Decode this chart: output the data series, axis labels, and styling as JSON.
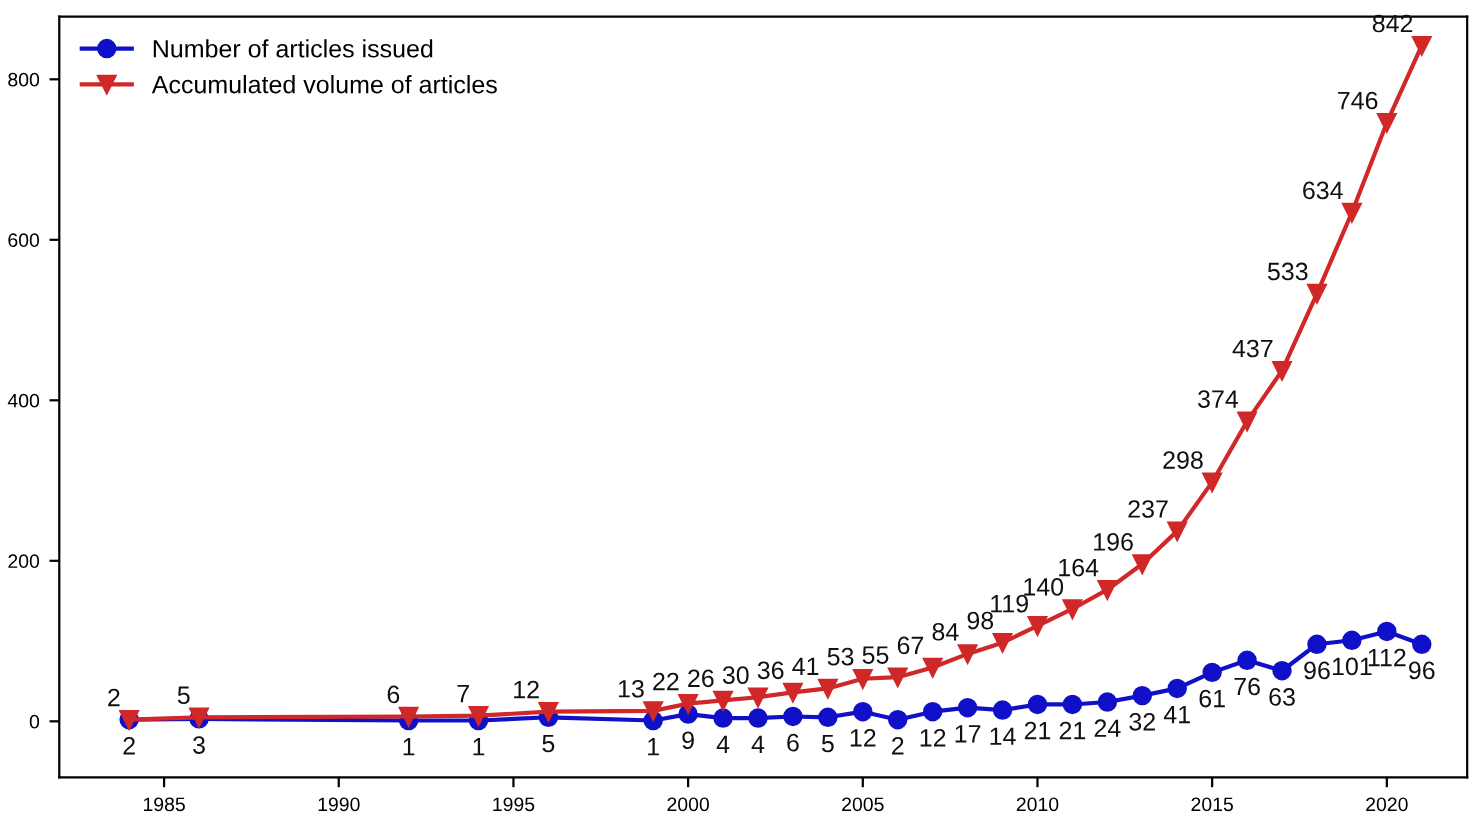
{
  "chart_data": {
    "type": "line",
    "x": [
      1984,
      1986,
      1992,
      1994,
      1996,
      1999,
      2000,
      2001,
      2002,
      2003,
      2004,
      2005,
      2006,
      2007,
      2008,
      2009,
      2010,
      2011,
      2012,
      2013,
      2014,
      2015,
      2016,
      2017,
      2018,
      2019,
      2020,
      2021
    ],
    "series": [
      {
        "name": "Number of articles issued",
        "color": "#1010c8",
        "marker": "circle",
        "values": [
          2,
          3,
          1,
          1,
          5,
          1,
          9,
          4,
          4,
          6,
          5,
          12,
          2,
          12,
          17,
          14,
          21,
          21,
          24,
          32,
          41,
          61,
          76,
          63,
          96,
          101,
          112,
          96
        ]
      },
      {
        "name": "Accumulated volume of articles",
        "color": "#d02828",
        "marker": "triangle",
        "values": [
          2,
          5,
          6,
          7,
          12,
          13,
          22,
          26,
          30,
          36,
          41,
          53,
          55,
          67,
          84,
          98,
          119,
          140,
          164,
          196,
          237,
          298,
          374,
          437,
          533,
          634,
          746,
          842
        ]
      }
    ],
    "xlim": [
      1982,
      2022.3
    ],
    "xticks": [
      1985,
      1990,
      1995,
      2000,
      2005,
      2010,
      2015,
      2020
    ],
    "ylim": [
      -70,
      878
    ],
    "yticks": [
      0,
      200,
      400,
      600,
      800
    ],
    "data_labels": true,
    "legend": "top left",
    "grid": false,
    "line_style": "solid"
  }
}
